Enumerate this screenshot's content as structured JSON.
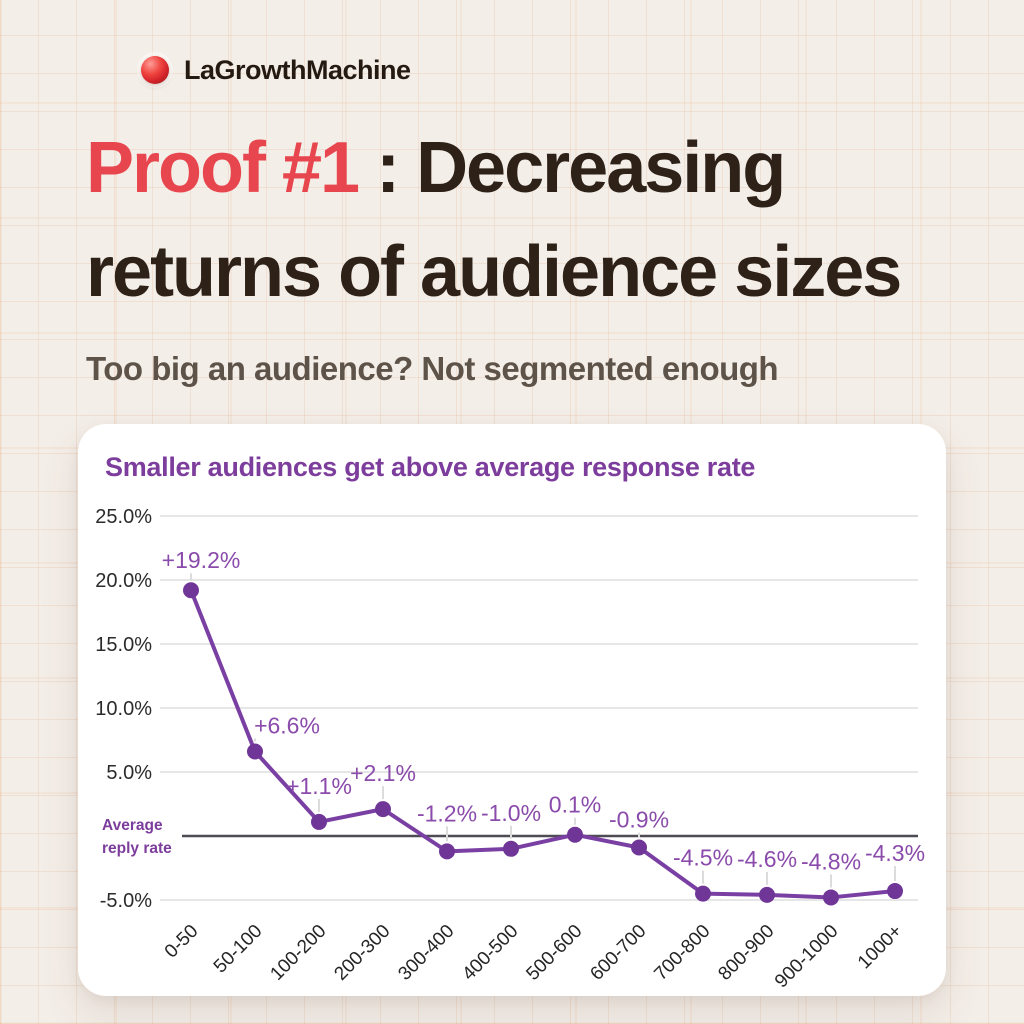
{
  "logo": {
    "brand": "LaGrowthMachine",
    "dot_color": "#d6252b"
  },
  "header": {
    "title_highlight": "Proof #1",
    "title_rest_line1": " : Decreasing",
    "title_line2": "returns of audience sizes",
    "highlight_color": "#e8464e",
    "subtitle": "Too big an audience? Not segmented enough"
  },
  "chart_card": {
    "title": "Smaller audiences get above average response rate"
  },
  "chart_data": {
    "type": "line",
    "title": "Smaller audiences get above average response rate",
    "categories": [
      "0-50",
      "50-100",
      "100-200",
      "200-300",
      "300-400",
      "400-500",
      "500-600",
      "600-700",
      "700-800",
      "800-900",
      "900-1000",
      "1000+"
    ],
    "values": [
      19.2,
      6.6,
      1.1,
      2.1,
      -1.2,
      -1.0,
      0.1,
      -0.9,
      -4.5,
      -4.6,
      -4.8,
      -4.3
    ],
    "point_labels": [
      "+19.2%",
      "+6.6%",
      "+1.1%",
      "+2.1%",
      "-1.2%",
      "-1.0%",
      "0.1%",
      "-0.9%",
      "-4.5%",
      "-4.6%",
      "-4.8%",
      "-4.3%"
    ],
    "y_ticks": [
      {
        "label": "25.0%",
        "value": 25
      },
      {
        "label": "20.0%",
        "value": 20
      },
      {
        "label": "15.0%",
        "value": 15
      },
      {
        "label": "10.0%",
        "value": 10
      },
      {
        "label": "5.0%",
        "value": 5
      },
      {
        "label": "-5.0%",
        "value": -5
      }
    ],
    "ylim": [
      -7,
      27
    ],
    "baseline": {
      "value": 0,
      "label_line1": "Average",
      "label_line2": "reply rate"
    },
    "xlabel": "",
    "ylabel": "",
    "grid": true,
    "legend": "none",
    "x_tick_rotation": -45,
    "line_color": "#7a3fa3",
    "point_color": "#6f3697",
    "label_color": "#8a4bab",
    "baseline_label_color": "#7c3d9c",
    "baseline_line_color": "#4e4b54",
    "grid_color": "#e6e6e6",
    "tick_color": "#2b2b2b"
  }
}
